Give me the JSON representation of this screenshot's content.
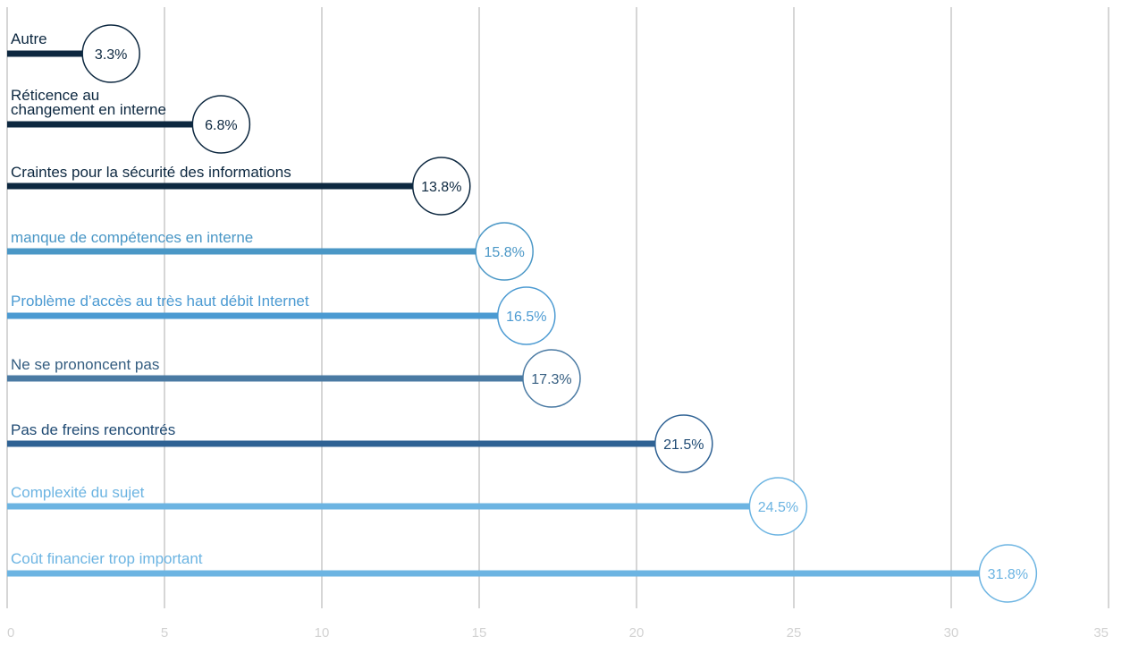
{
  "chart_data": {
    "type": "bar",
    "orientation": "horizontal",
    "categories": [
      "Autre",
      "Réticence au\nchangement en interne",
      "Craintes pour la sécurité des informations",
      "manque de compétences en interne",
      "Problème d’accès au très haut débit Internet",
      "Ne se prononcent pas",
      "Pas de freins rencontrés",
      "Complexité du sujet",
      "Coût financier trop important"
    ],
    "values": [
      3.3,
      6.8,
      13.8,
      15.8,
      16.5,
      17.3,
      21.5,
      24.5,
      31.8
    ],
    "data_labels": [
      "3.3%",
      "6.8%",
      "13.8%",
      "15.8%",
      "16.5%",
      "17.3%",
      "21.5%",
      "24.5%",
      "31.8%"
    ],
    "colors": [
      "#0d2840",
      "#0d2840",
      "#0d2840",
      "#4a97c6",
      "#4b9ad2",
      "#4a7aa3",
      "#2f6294",
      "#6cb4e2",
      "#6cb4e2"
    ],
    "label_colors": [
      "#0d2840",
      "#0d2840",
      "#0d2840",
      "#4a97c6",
      "#4b9ad2",
      "#345d80",
      "#1f4a73",
      "#6cb4e2",
      "#6cb4e2"
    ],
    "xlim": [
      0,
      35
    ],
    "x_ticks": [
      0,
      5,
      10,
      15,
      20,
      25,
      30,
      35
    ],
    "grid": true,
    "title": "",
    "xlabel": "",
    "ylabel": ""
  }
}
